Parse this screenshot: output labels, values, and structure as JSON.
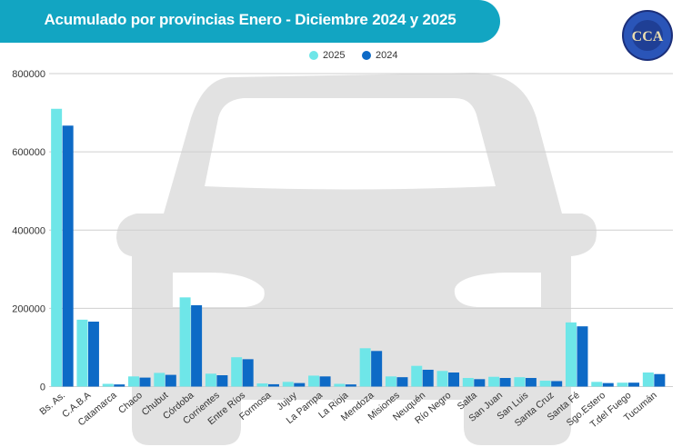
{
  "header": {
    "title": "Acumulado por provincias Enero  -  Diciembre 2024 y 2025"
  },
  "logo": {
    "text": "CCA",
    "ring_text": "CAMARA DEL COMERCIO AUTOMOTOR"
  },
  "chart_data": {
    "type": "bar",
    "title": "Acumulado por provincias Enero  -  Diciembre 2024 y 2025",
    "categories": [
      "Bs. As.",
      "C.A.B.A",
      "Catamarca",
      "Chaco",
      "Chubut",
      "Córdoba",
      "Corrientes",
      "Entre Ríos",
      "Formosa",
      "Jujuy",
      "La Pampa",
      "La Rioja",
      "Mendoza",
      "Misiones",
      "Neuquén",
      "Río Negro",
      "Salta",
      "San Juan",
      "San Luis",
      "Santa Cruz",
      "Santa Fé",
      "Sgo.Estero",
      "T.del Fuego",
      "Tucumán"
    ],
    "series": [
      {
        "name": "2025",
        "color": "#6ee6e8",
        "values": [
          710000,
          171000,
          7000,
          26000,
          35000,
          228000,
          33000,
          75000,
          8000,
          12000,
          28000,
          7000,
          98000,
          26000,
          53000,
          40000,
          22000,
          25000,
          24000,
          15000,
          164000,
          12000,
          10000,
          36000
        ]
      },
      {
        "name": "2024",
        "color": "#0d6ac6",
        "values": [
          667000,
          166000,
          5500,
          23000,
          30000,
          208000,
          29000,
          70000,
          6000,
          9000,
          26000,
          5500,
          91000,
          24000,
          43000,
          36000,
          19000,
          22000,
          22000,
          14000,
          154000,
          9000,
          10000,
          32000
        ]
      }
    ],
    "yticks": [
      "0",
      "200000",
      "400000",
      "600000",
      "800000"
    ],
    "ylim": [
      0,
      800000
    ],
    "grid": true,
    "legend": "top-center",
    "xlabel": "",
    "ylabel": ""
  }
}
